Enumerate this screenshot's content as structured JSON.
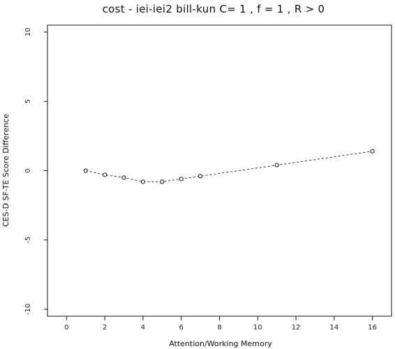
{
  "chart_data": {
    "type": "line",
    "title": "cost - iei-iei2 bill-kun C= 1 , f = 1 , R > 0",
    "xlabel": "Attention/Working Memory",
    "ylabel": "CES-D SF-TE Score Difference",
    "x_ticks": [
      "0",
      "2",
      "4",
      "6",
      "8",
      "10",
      "12",
      "14",
      "16"
    ],
    "y_ticks": [
      "10",
      "5",
      "0",
      "-5",
      "-10"
    ],
    "xlim": [
      -1,
      17
    ],
    "ylim": [
      -10.5,
      10.5
    ],
    "series": [
      {
        "x": [
          1,
          2,
          3,
          4,
          5,
          6,
          7,
          11,
          16
        ],
        "y": [
          0,
          -0.3,
          -0.5,
          -0.8,
          -0.8,
          -0.6,
          -0.4,
          0.4,
          1.4
        ]
      }
    ],
    "grid": false,
    "legend": "none"
  }
}
